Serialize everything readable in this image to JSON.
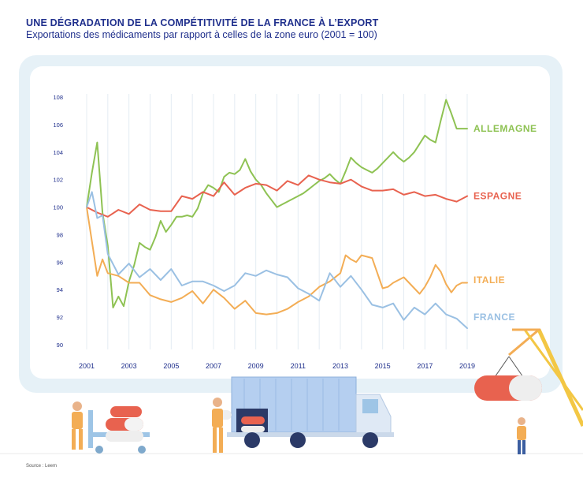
{
  "header": {
    "title": "UNE DÉGRADATION DE LA COMPÉTITIVITÉ DE LA FRANCE À L’EXPORT",
    "subtitle": "Exportations des médicaments par rapport à celles de la zone euro  (2001 = 100)"
  },
  "source": "Source : Leem",
  "colors": {
    "title": "#1f2f8c",
    "allemagne": "#8ec253",
    "espagne": "#e8624f",
    "italie": "#f3ad55",
    "france": "#9ac0e3",
    "frame": "#e6f1f7"
  },
  "chart_data": {
    "type": "line",
    "title": "UNE DÉGRADATION DE LA COMPÉTITIVITÉ DE LA FRANCE À L’EXPORT",
    "subtitle": "Exportations des médicaments par rapport à celles de la zone euro  (2001 = 100)",
    "xlim": [
      2001,
      2019
    ],
    "ylim": [
      90,
      108
    ],
    "x_ticks": [
      "2001",
      "2003",
      "2005",
      "2007",
      "2009",
      "2011",
      "2013",
      "2015",
      "2017",
      "2019"
    ],
    "y_ticks": [
      "90",
      "92",
      "94",
      "96",
      "98",
      "100",
      "102",
      "104",
      "106",
      "108"
    ],
    "grid": "vertical",
    "legend": "labels at right end of each line",
    "series": [
      {
        "name": "ALLEMAGNE",
        "color": "#8ec253",
        "x": [
          2001,
          2001.25,
          2001.5,
          2001.75,
          2002,
          2002.25,
          2002.5,
          2002.75,
          2003,
          2003.25,
          2003.5,
          2003.75,
          2004,
          2004.25,
          2004.5,
          2004.75,
          2005,
          2005.25,
          2005.5,
          2005.75,
          2006,
          2006.25,
          2006.5,
          2006.75,
          2007,
          2007.25,
          2007.5,
          2007.75,
          2008,
          2008.25,
          2008.5,
          2008.75,
          2009,
          2009.25,
          2009.5,
          2009.75,
          2010,
          2010.25,
          2010.5,
          2010.75,
          2011,
          2011.25,
          2011.5,
          2011.75,
          2012,
          2012.25,
          2012.5,
          2012.75,
          2013,
          2013.25,
          2013.5,
          2013.75,
          2014,
          2014.25,
          2014.5,
          2014.75,
          2015,
          2015.25,
          2015.5,
          2015.75,
          2016,
          2016.25,
          2016.5,
          2016.75,
          2017,
          2017.25,
          2017.5,
          2017.75,
          2018,
          2018.25,
          2018.5,
          2018.75,
          2019
        ],
        "y": [
          100,
          102.5,
          104.7,
          99.6,
          97.2,
          92.7,
          93.5,
          92.8,
          94.6,
          95.8,
          97.4,
          97.1,
          96.9,
          97.8,
          99.0,
          98.2,
          98.7,
          99.3,
          99.3,
          99.4,
          99.3,
          99.9,
          101.0,
          101.6,
          101.4,
          101.1,
          102.2,
          102.5,
          102.4,
          102.7,
          103.5,
          102.6,
          102.0,
          101.6,
          101.0,
          100.5,
          100.0,
          100.2,
          100.4,
          100.6,
          100.8,
          101.0,
          101.3,
          101.6,
          101.9,
          102.1,
          102.4,
          102.0,
          101.7,
          102.6,
          103.6,
          103.2,
          102.9,
          102.7,
          102.5,
          102.8,
          103.2,
          103.6,
          104.0,
          103.6,
          103.3,
          103.6,
          104.0,
          104.6,
          105.2,
          104.9,
          104.7,
          106.3,
          107.8,
          106.8,
          105.7,
          105.7,
          105.7
        ]
      },
      {
        "name": "ESPAGNE",
        "color": "#e8624f",
        "x": [
          2001,
          2001.5,
          2002,
          2002.5,
          2003,
          2003.5,
          2004,
          2004.5,
          2005,
          2005.5,
          2006,
          2006.5,
          2007,
          2007.5,
          2008,
          2008.5,
          2009,
          2009.5,
          2010,
          2010.5,
          2011,
          2011.5,
          2012,
          2012.5,
          2013,
          2013.5,
          2014,
          2014.5,
          2015,
          2015.5,
          2016,
          2016.5,
          2017,
          2017.5,
          2018,
          2018.5,
          2019
        ],
        "y": [
          100,
          99.6,
          99.3,
          99.8,
          99.5,
          100.2,
          99.8,
          99.7,
          99.7,
          100.8,
          100.6,
          101.1,
          100.8,
          101.8,
          100.9,
          101.4,
          101.7,
          101.6,
          101.2,
          101.9,
          101.6,
          102.3,
          102.0,
          101.8,
          101.7,
          102.0,
          101.5,
          101.2,
          101.2,
          101.3,
          100.9,
          101.1,
          100.8,
          100.9,
          100.6,
          100.4,
          100.8
        ]
      },
      {
        "name": "ITALIE",
        "color": "#f3ad55",
        "x": [
          2001,
          2001.25,
          2001.5,
          2001.75,
          2002,
          2002.5,
          2003,
          2003.5,
          2004,
          2004.5,
          2005,
          2005.5,
          2006,
          2006.5,
          2007,
          2007.5,
          2008,
          2008.5,
          2009,
          2009.5,
          2010,
          2010.5,
          2011,
          2011.5,
          2012,
          2012.5,
          2013,
          2013.25,
          2013.5,
          2013.75,
          2014,
          2014.5,
          2015,
          2015.25,
          2015.5,
          2015.75,
          2016,
          2016.25,
          2016.5,
          2016.75,
          2017,
          2017.25,
          2017.5,
          2017.75,
          2018,
          2018.25,
          2018.5,
          2018.75,
          2019
        ],
        "y": [
          100,
          97.5,
          95.0,
          96.2,
          95.2,
          95.0,
          94.5,
          94.5,
          93.6,
          93.3,
          93.1,
          93.4,
          93.9,
          93.0,
          94.0,
          93.4,
          92.6,
          93.2,
          92.3,
          92.2,
          92.3,
          92.6,
          93.1,
          93.5,
          94.2,
          94.6,
          95.2,
          96.5,
          96.2,
          96.0,
          96.5,
          96.3,
          94.1,
          94.2,
          94.5,
          94.7,
          94.9,
          94.5,
          94.1,
          93.7,
          94.2,
          94.9,
          95.8,
          95.3,
          94.4,
          93.8,
          94.3,
          94.5,
          94.5
        ]
      },
      {
        "name": "FRANCE",
        "color": "#9ac0e3",
        "x": [
          2001,
          2001.25,
          2001.5,
          2001.75,
          2002,
          2002.5,
          2003,
          2003.5,
          2004,
          2004.5,
          2005,
          2005.5,
          2006,
          2006.5,
          2007,
          2007.5,
          2008,
          2008.5,
          2009,
          2009.5,
          2010,
          2010.5,
          2011,
          2011.5,
          2012,
          2012.5,
          2013,
          2013.5,
          2014,
          2014.5,
          2015,
          2015.5,
          2016,
          2016.5,
          2017,
          2017.5,
          2018,
          2018.5,
          2019
        ],
        "y": [
          100,
          101.1,
          99.2,
          99.4,
          96.6,
          95.1,
          95.9,
          94.9,
          95.5,
          94.7,
          95.5,
          94.3,
          94.6,
          94.6,
          94.3,
          93.9,
          94.3,
          95.2,
          95.0,
          95.4,
          95.1,
          94.9,
          94.1,
          93.7,
          93.2,
          95.2,
          94.2,
          95.0,
          94.0,
          92.9,
          92.7,
          93.0,
          91.8,
          92.7,
          92.2,
          93.0,
          92.2,
          91.9,
          91.2
        ]
      }
    ]
  }
}
